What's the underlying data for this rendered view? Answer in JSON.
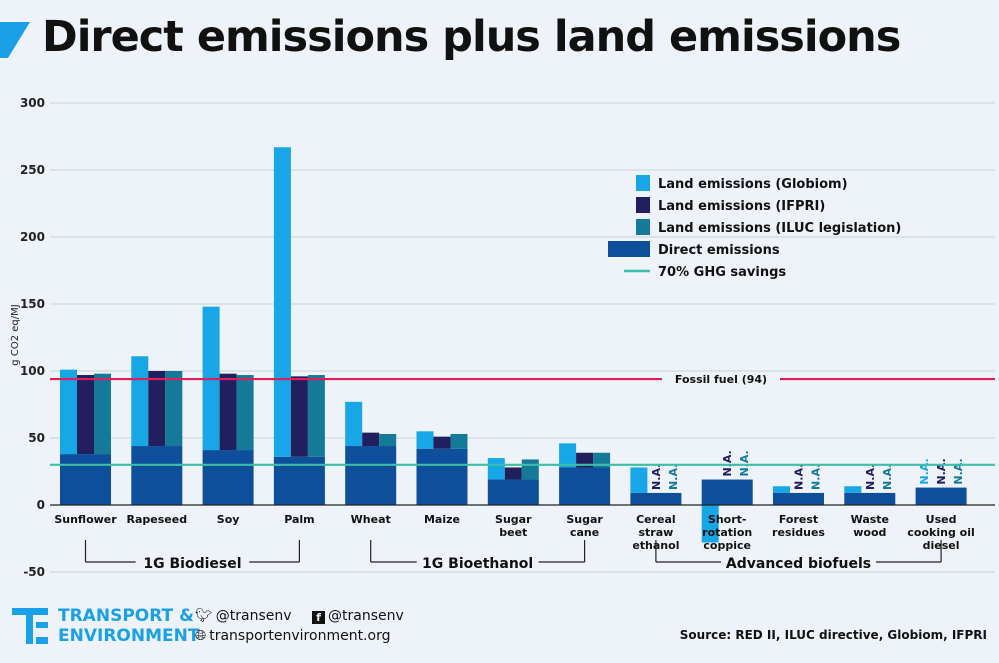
{
  "header": {
    "title": "Direct emissions plus land emissions"
  },
  "colors": {
    "globiom": "#17a6e6",
    "ifpri": "#221f5e",
    "iluc": "#157a99",
    "direct": "#0d4f9b",
    "ghg_line": "#3bbfa6",
    "fossil_line": "#e01e5a",
    "grid": "#c9d1db",
    "accent": "#1aa0e6"
  },
  "chart_data": {
    "type": "bar",
    "ylabel": "g CO2 eq/MJ",
    "ylim": [
      -50,
      300
    ],
    "yticks": [
      -50,
      0,
      50,
      100,
      150,
      200,
      250,
      300
    ],
    "categories": [
      {
        "label": [
          "Sunflower"
        ],
        "direct": 38,
        "globiom": 101,
        "ifpri": 97,
        "iluc": 98,
        "na": []
      },
      {
        "label": [
          "Rapeseed"
        ],
        "direct": 44,
        "globiom": 111,
        "ifpri": 100,
        "iluc": 100,
        "na": []
      },
      {
        "label": [
          "Soy"
        ],
        "direct": 41,
        "globiom": 148,
        "ifpri": 98,
        "iluc": 97,
        "na": []
      },
      {
        "label": [
          "Palm"
        ],
        "direct": 36,
        "globiom": 267,
        "ifpri": 96,
        "iluc": 97,
        "na": []
      },
      {
        "label": [
          "Wheat"
        ],
        "direct": 44,
        "globiom": 77,
        "ifpri": 54,
        "iluc": 53,
        "na": []
      },
      {
        "label": [
          "Maize"
        ],
        "direct": 42,
        "globiom": 55,
        "ifpri": 51,
        "iluc": 53,
        "na": []
      },
      {
        "label": [
          "Sugar",
          "beet"
        ],
        "direct": 19,
        "globiom": 35,
        "ifpri": 28,
        "iluc": 34,
        "na": []
      },
      {
        "label": [
          "Sugar",
          "cane"
        ],
        "direct": 28,
        "globiom": 46,
        "ifpri": 39,
        "iluc": 39,
        "na": []
      },
      {
        "label": [
          "Cereal",
          "straw",
          "ethanol"
        ],
        "direct": 9,
        "globiom": 28,
        "ifpri": null,
        "iluc": null,
        "na": [
          "ifpri",
          "iluc"
        ]
      },
      {
        "label": [
          "Short-",
          "rotation",
          "coppice"
        ],
        "direct": 19,
        "globiom": -28,
        "ifpri": null,
        "iluc": null,
        "na": [
          "ifpri",
          "iluc"
        ]
      },
      {
        "label": [
          "Forest",
          "residues"
        ],
        "direct": 9,
        "globiom": 14,
        "ifpri": null,
        "iluc": null,
        "na": [
          "ifpri",
          "iluc"
        ]
      },
      {
        "label": [
          "Waste",
          "wood"
        ],
        "direct": 9,
        "globiom": 14,
        "ifpri": null,
        "iluc": null,
        "na": [
          "ifpri",
          "iluc"
        ]
      },
      {
        "label": [
          "Used",
          "cooking oil",
          "diesel"
        ],
        "direct": 13,
        "globiom": null,
        "ifpri": null,
        "iluc": null,
        "na": [
          "globiom",
          "ifpri",
          "iluc"
        ]
      }
    ],
    "na_label": "N.A.",
    "reference_lines": [
      {
        "name": "Fossil fuel (94)",
        "value": 94
      },
      {
        "name": "70% GHG savings",
        "value": 30
      }
    ],
    "legend": {
      "placement": "top-right",
      "entries": [
        {
          "key": "globiom",
          "label": "Land emissions (Globiom)"
        },
        {
          "key": "ifpri",
          "label": "Land emissions (IFPRI)"
        },
        {
          "key": "iluc",
          "label": "Land emissions (ILUC legislation)"
        },
        {
          "key": "direct",
          "label": "Direct emissions"
        },
        {
          "key": "ghg",
          "label": "70% GHG savings"
        }
      ]
    },
    "groups": [
      {
        "label": "1G Biodiesel",
        "from": 0,
        "to": 3
      },
      {
        "label": "1G Bioethanol",
        "from": 4,
        "to": 7
      },
      {
        "label": "Advanced biofuels",
        "from": 8,
        "to": 12
      }
    ]
  },
  "footer": {
    "brand_line1": "TRANSPORT &",
    "brand_line2": "ENVIRONMENT",
    "twitter": "@transenv",
    "facebook": "@transenv",
    "website": "transportenvironment.org",
    "source": "Source: RED II, ILUC directive, Globiom, IFPRI"
  }
}
